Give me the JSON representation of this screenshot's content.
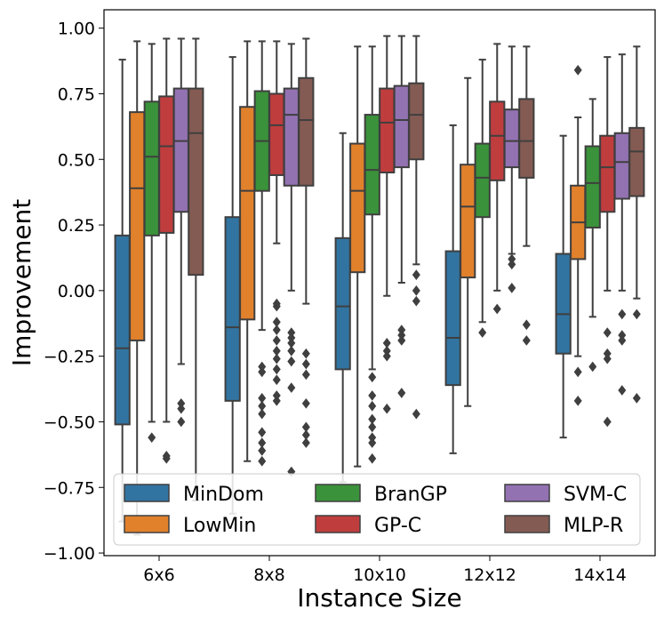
{
  "chart_data": {
    "type": "box",
    "title": "",
    "xlabel": "Instance Size",
    "ylabel": "Improvement",
    "ylim": [
      -1.01,
      1.07
    ],
    "yticks": [
      -1.0,
      -0.75,
      -0.5,
      -0.25,
      0.0,
      0.25,
      0.5,
      0.75,
      1.0
    ],
    "ytick_labels": [
      "−1.00",
      "−0.75",
      "−0.50",
      "−0.25",
      "0.00",
      "0.25",
      "0.50",
      "0.75",
      "1.00"
    ],
    "categories": [
      "6x6",
      "8x8",
      "10x10",
      "12x12",
      "14x14"
    ],
    "legend_position": "lower-center",
    "series": [
      {
        "name": "MinDom",
        "color": "#3274a1",
        "boxes": [
          {
            "whislo": -0.88,
            "q1": -0.51,
            "med": -0.22,
            "q3": 0.21,
            "whishi": 0.88,
            "fliers": []
          },
          {
            "whislo": -0.85,
            "q1": -0.42,
            "med": -0.14,
            "q3": 0.28,
            "whishi": 0.89,
            "fliers": []
          },
          {
            "whislo": -0.73,
            "q1": -0.3,
            "med": -0.06,
            "q3": 0.2,
            "whishi": 0.6,
            "fliers": []
          },
          {
            "whislo": -0.62,
            "q1": -0.36,
            "med": -0.18,
            "q3": 0.15,
            "whishi": 0.63,
            "fliers": []
          },
          {
            "whislo": -0.56,
            "q1": -0.24,
            "med": -0.09,
            "q3": 0.14,
            "whishi": 0.59,
            "fliers": []
          }
        ]
      },
      {
        "name": "LowMin",
        "color": "#e1812c",
        "boxes": [
          {
            "whislo": -0.93,
            "q1": -0.19,
            "med": 0.39,
            "q3": 0.68,
            "whishi": 0.95,
            "fliers": []
          },
          {
            "whislo": -0.65,
            "q1": -0.11,
            "med": 0.38,
            "q3": 0.7,
            "whishi": 0.95,
            "fliers": []
          },
          {
            "whislo": -0.67,
            "q1": 0.07,
            "med": 0.38,
            "q3": 0.56,
            "whishi": 0.93,
            "fliers": []
          },
          {
            "whislo": -0.44,
            "q1": 0.05,
            "med": 0.32,
            "q3": 0.48,
            "whishi": 0.81,
            "fliers": []
          },
          {
            "whislo": -0.25,
            "q1": 0.12,
            "med": 0.26,
            "q3": 0.4,
            "whishi": 0.66,
            "fliers": [
              -0.31,
              -0.42,
              0.84
            ]
          }
        ]
      },
      {
        "name": "BranGP",
        "color": "#3a923a",
        "boxes": [
          {
            "whislo": -0.5,
            "q1": 0.21,
            "med": 0.51,
            "q3": 0.72,
            "whishi": 0.94,
            "fliers": [
              -0.56
            ]
          },
          {
            "whislo": -0.15,
            "q1": 0.38,
            "med": 0.57,
            "q3": 0.76,
            "whishi": 0.95,
            "fliers": [
              -0.29,
              -0.31,
              -0.41,
              -0.44,
              -0.47,
              -0.54,
              -0.58,
              -0.61,
              -0.65
            ]
          },
          {
            "whislo": -0.3,
            "q1": 0.29,
            "med": 0.46,
            "q3": 0.67,
            "whishi": 0.93,
            "fliers": [
              -0.33,
              -0.4,
              -0.44,
              -0.49,
              -0.52,
              -0.56,
              -0.58,
              -0.64
            ]
          },
          {
            "whislo": -0.12,
            "q1": 0.28,
            "med": 0.43,
            "q3": 0.56,
            "whishi": 0.88,
            "fliers": [
              -0.16
            ]
          },
          {
            "whislo": -0.1,
            "q1": 0.24,
            "med": 0.41,
            "q3": 0.55,
            "whishi": 0.73,
            "fliers": [
              -0.29
            ]
          }
        ]
      },
      {
        "name": "GP-C",
        "color": "#c03d3e",
        "boxes": [
          {
            "whislo": -0.5,
            "q1": 0.22,
            "med": 0.55,
            "q3": 0.74,
            "whishi": 0.96,
            "fliers": [
              -0.63,
              -0.64
            ]
          },
          {
            "whislo": 0.18,
            "q1": 0.44,
            "med": 0.63,
            "q3": 0.75,
            "whishi": 0.95,
            "fliers": [
              -0.05,
              -0.06,
              -0.12,
              -0.15,
              -0.19,
              -0.23,
              -0.26,
              -0.3,
              -0.34,
              -0.4,
              -0.42
            ]
          },
          {
            "whislo": -0.02,
            "q1": 0.45,
            "med": 0.64,
            "q3": 0.77,
            "whishi": 0.97,
            "fliers": [
              -0.2,
              -0.23,
              -0.25,
              -0.45
            ]
          },
          {
            "whislo": 0.0,
            "q1": 0.42,
            "med": 0.59,
            "q3": 0.72,
            "whishi": 0.94,
            "fliers": [
              -0.07
            ]
          },
          {
            "whislo": 0.0,
            "q1": 0.3,
            "med": 0.47,
            "q3": 0.59,
            "whishi": 0.89,
            "fliers": [
              -0.16,
              -0.24,
              -0.26,
              -0.5
            ]
          }
        ]
      },
      {
        "name": "SVM-C",
        "color": "#9372b2",
        "boxes": [
          {
            "whislo": -0.28,
            "q1": 0.3,
            "med": 0.57,
            "q3": 0.77,
            "whishi": 0.96,
            "fliers": [
              -0.43,
              -0.45,
              -0.5
            ]
          },
          {
            "whislo": 0.0,
            "q1": 0.4,
            "med": 0.67,
            "q3": 0.77,
            "whishi": 0.94,
            "fliers": [
              -0.16,
              -0.18,
              -0.2,
              -0.23,
              -0.27,
              -0.37,
              -0.69
            ]
          },
          {
            "whislo": 0.03,
            "q1": 0.47,
            "med": 0.65,
            "q3": 0.78,
            "whishi": 0.97,
            "fliers": [
              -0.15,
              -0.17,
              -0.19,
              -0.39
            ]
          },
          {
            "whislo": 0.14,
            "q1": 0.47,
            "med": 0.57,
            "q3": 0.69,
            "whishi": 0.93,
            "fliers": [
              0.12,
              0.1,
              0.01
            ]
          },
          {
            "whislo": 0.0,
            "q1": 0.35,
            "med": 0.49,
            "q3": 0.6,
            "whishi": 0.9,
            "fliers": [
              -0.09,
              -0.17,
              -0.19,
              -0.38
            ]
          }
        ]
      },
      {
        "name": "MLP-R",
        "color": "#845b53",
        "boxes": [
          {
            "whislo": -0.8,
            "q1": 0.06,
            "med": 0.6,
            "q3": 0.77,
            "whishi": 0.96,
            "fliers": []
          },
          {
            "whislo": -0.05,
            "q1": 0.4,
            "med": 0.65,
            "q3": 0.81,
            "whishi": 0.96,
            "fliers": [
              -0.24,
              -0.28,
              -0.32,
              -0.43,
              -0.52,
              -0.55,
              -0.58
            ]
          },
          {
            "whislo": 0.1,
            "q1": 0.5,
            "med": 0.67,
            "q3": 0.79,
            "whishi": 0.97,
            "fliers": [
              0.06,
              0.0,
              -0.04,
              -0.47
            ]
          },
          {
            "whislo": 0.17,
            "q1": 0.43,
            "med": 0.57,
            "q3": 0.73,
            "whishi": 0.93,
            "fliers": [
              -0.13,
              -0.19
            ]
          },
          {
            "whislo": -0.03,
            "q1": 0.36,
            "med": 0.53,
            "q3": 0.62,
            "whishi": 0.93,
            "fliers": [
              -0.09,
              -0.41
            ]
          }
        ]
      }
    ]
  }
}
